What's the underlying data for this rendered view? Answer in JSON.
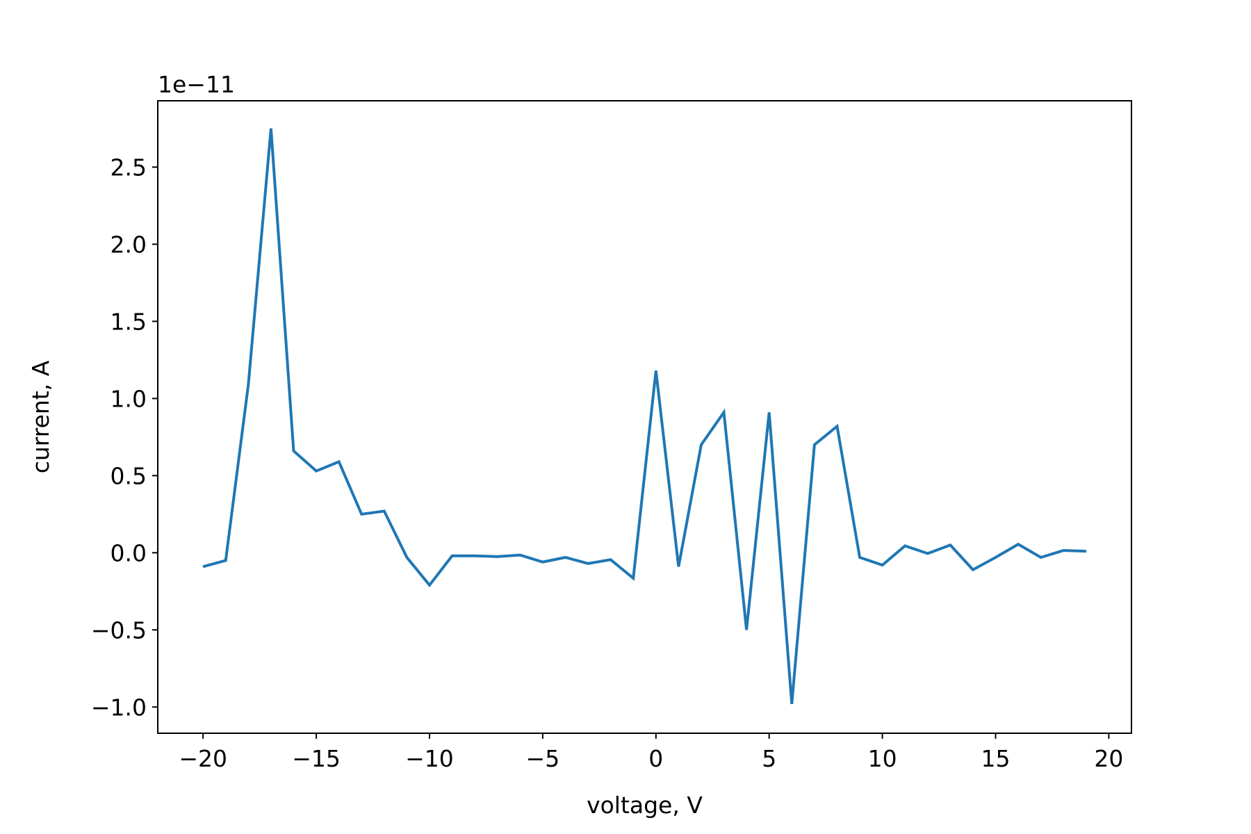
{
  "chart_data": {
    "type": "line",
    "title": "",
    "xlabel": "voltage, V",
    "ylabel": "current, A",
    "y_offset_label": "1e−11",
    "xlim": [
      -22,
      21
    ],
    "ylim": [
      -1.17,
      2.93
    ],
    "grid": false,
    "x_ticks": [
      {
        "value": -20,
        "label": "−20"
      },
      {
        "value": -15,
        "label": "−15"
      },
      {
        "value": -10,
        "label": "−10"
      },
      {
        "value": -5,
        "label": "−5"
      },
      {
        "value": 0,
        "label": "0"
      },
      {
        "value": 5,
        "label": "5"
      },
      {
        "value": 10,
        "label": "10"
      },
      {
        "value": 15,
        "label": "15"
      },
      {
        "value": 20,
        "label": "20"
      }
    ],
    "y_ticks": [
      {
        "value": -1.0,
        "label": "−1.0"
      },
      {
        "value": -0.5,
        "label": "−0.5"
      },
      {
        "value": 0.0,
        "label": "0.0"
      },
      {
        "value": 0.5,
        "label": "0.5"
      },
      {
        "value": 1.0,
        "label": "1.0"
      },
      {
        "value": 1.5,
        "label": "1.5"
      },
      {
        "value": 2.0,
        "label": "2.0"
      },
      {
        "value": 2.5,
        "label": "2.5"
      }
    ],
    "series": [
      {
        "color": "#1f77b4",
        "x": [
          -20,
          -19,
          -18,
          -17,
          -16,
          -15,
          -14,
          -13,
          -12,
          -11,
          -10,
          -9,
          -8,
          -7,
          -6,
          -5,
          -4,
          -3,
          -2,
          -1,
          0,
          1,
          2,
          3,
          4,
          5,
          6,
          7,
          8,
          9,
          10,
          11,
          12,
          13,
          14,
          15,
          16,
          17,
          18,
          19
        ],
        "y": [
          -0.09,
          -0.05,
          1.09,
          2.75,
          0.66,
          0.53,
          0.59,
          0.25,
          0.27,
          -0.03,
          -0.21,
          -0.02,
          -0.02,
          -0.025,
          -0.015,
          -0.06,
          -0.03,
          -0.07,
          -0.045,
          -0.165,
          1.18,
          -0.09,
          0.7,
          0.91,
          -0.5,
          0.91,
          -0.98,
          0.7,
          0.82,
          -0.03,
          -0.08,
          0.045,
          -0.005,
          0.05,
          -0.11,
          -0.03,
          0.055,
          -0.03,
          0.015,
          0.01
        ]
      }
    ]
  }
}
